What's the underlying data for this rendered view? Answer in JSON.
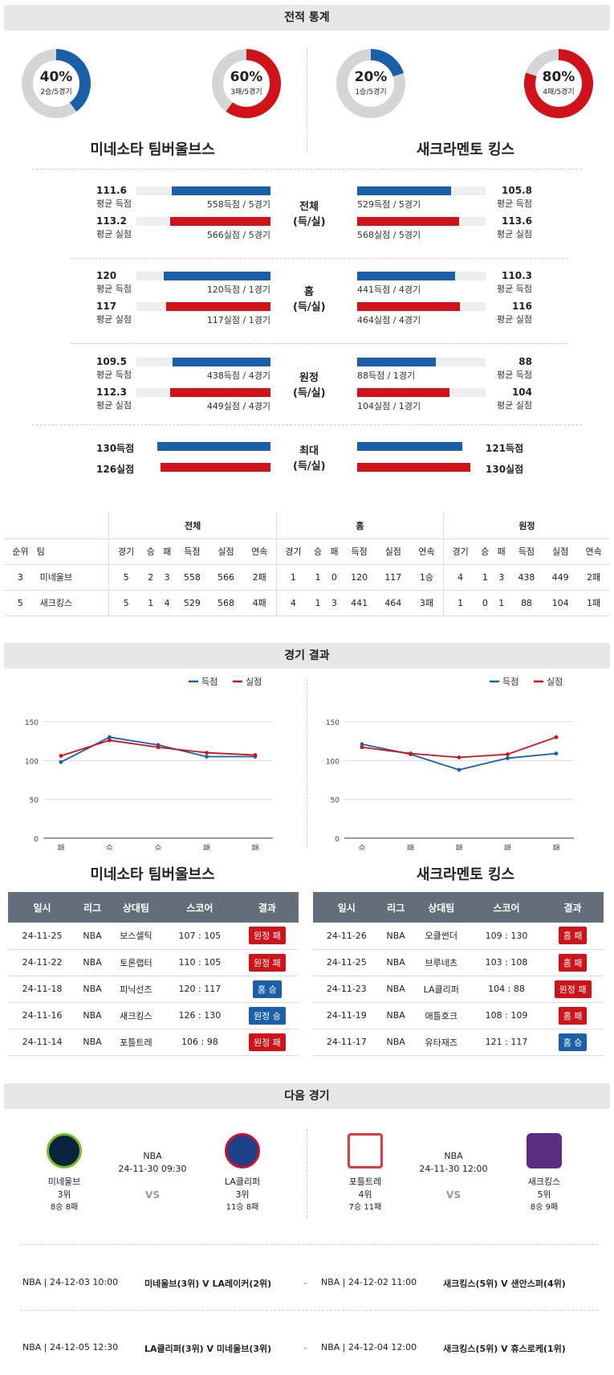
{
  "sections": {
    "stats": "전적 통계",
    "results": "경기 결과",
    "next": "다음 경기"
  },
  "donuts": [
    {
      "pct": "40%",
      "sub": "2승/5경기",
      "value": 0.4,
      "color": "#1a5fa8"
    },
    {
      "pct": "60%",
      "sub": "3패/5경기",
      "value": 0.6,
      "color": "#d0121b"
    },
    {
      "pct": "20%",
      "sub": "1승/5경기",
      "value": 0.2,
      "color": "#1a5fa8"
    },
    {
      "pct": "80%",
      "sub": "4패/5경기",
      "value": 0.8,
      "color": "#d0121b"
    }
  ],
  "teams": {
    "home": "미네소타 팀버울브스",
    "away": "새크라멘토 킹스"
  },
  "stat_groups": [
    {
      "label": "전체\n(득/실)",
      "rows": [
        {
          "l_num": "111.6",
          "l_lbl": "평균 득점",
          "l_cap": "558득점 / 5경기",
          "r_num": "105.8",
          "r_lbl": "평균 득점",
          "r_cap": "529득점 / 5경기",
          "l_frac": 0.76,
          "r_frac": 0.72,
          "color": "blue"
        },
        {
          "l_num": "113.2",
          "l_lbl": "평균 실점",
          "l_cap": "566실점 / 5경기",
          "r_num": "113.6",
          "r_lbl": "평균 실점",
          "r_cap": "568실점 / 5경기",
          "l_frac": 0.77,
          "r_frac": 0.78,
          "color": "red"
        }
      ]
    },
    {
      "label": "홈\n(득/실)",
      "rows": [
        {
          "l_num": "120",
          "l_lbl": "평균 득점",
          "l_cap": "120득점 / 1경기",
          "r_num": "110.3",
          "r_lbl": "평균 득점",
          "r_cap": "441득점 / 4경기",
          "l_frac": 0.82,
          "r_frac": 0.75,
          "color": "blue"
        },
        {
          "l_num": "117",
          "l_lbl": "평균 실점",
          "l_cap": "117실점 / 1경기",
          "r_num": "116",
          "r_lbl": "평균 실점",
          "r_cap": "464실점 / 4경기",
          "l_frac": 0.8,
          "r_frac": 0.79,
          "color": "red"
        }
      ]
    },
    {
      "label": "원정\n(득/실)",
      "rows": [
        {
          "l_num": "109.5",
          "l_lbl": "평균 득점",
          "l_cap": "438득점 / 4경기",
          "r_num": "88",
          "r_lbl": "평균 득점",
          "r_cap": "88득점 / 1경기",
          "l_frac": 0.75,
          "r_frac": 0.6,
          "color": "blue"
        },
        {
          "l_num": "112.3",
          "l_lbl": "평균 실점",
          "l_cap": "449실점 / 4경기",
          "r_num": "104",
          "r_lbl": "평균 실점",
          "r_cap": "104실점 / 1경기",
          "l_frac": 0.77,
          "r_frac": 0.71,
          "color": "red"
        }
      ]
    }
  ],
  "max": {
    "label": "최대\n(득/실)",
    "l_score": "130득점",
    "l_allow": "126실점",
    "r_score": "121득점",
    "r_allow": "130실점",
    "l_score_frac": 0.94,
    "l_allow_frac": 0.91,
    "r_score_frac": 0.87,
    "r_allow_frac": 0.94
  },
  "standings": {
    "groups": [
      "전체",
      "홈",
      "원정"
    ],
    "cols": [
      "순위",
      "팀",
      "경기",
      "승",
      "패",
      "득점",
      "실점",
      "연속",
      "경기",
      "승",
      "패",
      "득점",
      "실점",
      "연속",
      "경기",
      "승",
      "패",
      "득점",
      "실점",
      "연속"
    ],
    "rows": [
      [
        "3",
        "미네울브",
        "5",
        "2",
        "3",
        "558",
        "566",
        "2패",
        "1",
        "1",
        "0",
        "120",
        "117",
        "1승",
        "4",
        "1",
        "3",
        "438",
        "449",
        "2패"
      ],
      [
        "5",
        "새크킹스",
        "5",
        "1",
        "4",
        "529",
        "568",
        "4패",
        "4",
        "1",
        "3",
        "441",
        "464",
        "3패",
        "1",
        "0",
        "1",
        "88",
        "104",
        "1패"
      ]
    ]
  },
  "legend": {
    "score": "득점",
    "allow": "실점"
  },
  "chart_data": [
    {
      "type": "line",
      "categories": [
        "패",
        "승",
        "승",
        "패",
        "패"
      ],
      "ylim": [
        0,
        150
      ],
      "yticks": [
        0,
        50,
        100,
        150
      ],
      "series": [
        {
          "name": "득점",
          "color": "#1a5fa8",
          "values": [
            98,
            130,
            120,
            105,
            105
          ]
        },
        {
          "name": "실점",
          "color": "#d0121b",
          "values": [
            106,
            126,
            117,
            110,
            107
          ]
        }
      ]
    },
    {
      "type": "line",
      "categories": [
        "승",
        "패",
        "패",
        "패",
        "패"
      ],
      "ylim": [
        0,
        150
      ],
      "yticks": [
        0,
        50,
        100,
        150
      ],
      "series": [
        {
          "name": "득점",
          "color": "#1a5fa8",
          "values": [
            121,
            108,
            88,
            103,
            109
          ]
        },
        {
          "name": "실점",
          "color": "#d0121b",
          "values": [
            117,
            109,
            104,
            108,
            130
          ]
        }
      ]
    }
  ],
  "results_headers": [
    "일시",
    "리그",
    "상대팀",
    "스코어",
    "결과"
  ],
  "results_left": [
    [
      "24-11-25",
      "NBA",
      "보스셀틱",
      "107 : 105",
      "원정 패",
      "red"
    ],
    [
      "24-11-22",
      "NBA",
      "토론랩터",
      "110 : 105",
      "원정 패",
      "red"
    ],
    [
      "24-11-18",
      "NBA",
      "피닉선즈",
      "120 : 117",
      "홈 승",
      "blue"
    ],
    [
      "24-11-16",
      "NBA",
      "새크킹스",
      "126 : 130",
      "원정 승",
      "blue"
    ],
    [
      "24-11-14",
      "NBA",
      "포틀트레",
      "106 : 98",
      "원정 패",
      "red"
    ]
  ],
  "results_right": [
    [
      "24-11-26",
      "NBA",
      "오클썬더",
      "109 : 130",
      "홈 패",
      "red"
    ],
    [
      "24-11-25",
      "NBA",
      "브루네츠",
      "103 : 108",
      "홈 패",
      "red"
    ],
    [
      "24-11-23",
      "NBA",
      "LA클리퍼",
      "104 : 88",
      "원정 패",
      "red"
    ],
    [
      "24-11-19",
      "NBA",
      "애틀호크",
      "108 : 109",
      "홈 패",
      "red"
    ],
    [
      "24-11-17",
      "NBA",
      "유타재즈",
      "121 : 117",
      "홈 승",
      "blue"
    ]
  ],
  "next_games": [
    {
      "league": "NBA",
      "date": "24-11-30 09:30",
      "vs": "VS",
      "a": {
        "name": "미네울브",
        "rank": "3위",
        "record": "8승 8패"
      },
      "b": {
        "name": "LA클리퍼",
        "rank": "3위",
        "record": "11승 8패"
      }
    },
    {
      "league": "NBA",
      "date": "24-11-30 12:00",
      "vs": "VS",
      "a": {
        "name": "포틀트레",
        "rank": "4위",
        "record": "7승 11패"
      },
      "b": {
        "name": "새크킹스",
        "rank": "5위",
        "record": "8승 9패"
      }
    }
  ],
  "upcoming": [
    {
      "left": "NBA | 24-12-03 10:00",
      "left_teams": "미네울브(3위) V  LA레이커(2위)",
      "right": "NBA | 24-12-02 11:00",
      "right_teams": "새크킹스(5위) V  샌안스퍼(4위)"
    },
    {
      "left": "NBA | 24-12-05 12:30",
      "left_teams": "LA클리퍼(3위) V  미네울브(3위)",
      "right": "NBA | 24-12-04 12:00",
      "right_teams": "새크킹스(5위) V  휴스로케(1위)"
    }
  ]
}
